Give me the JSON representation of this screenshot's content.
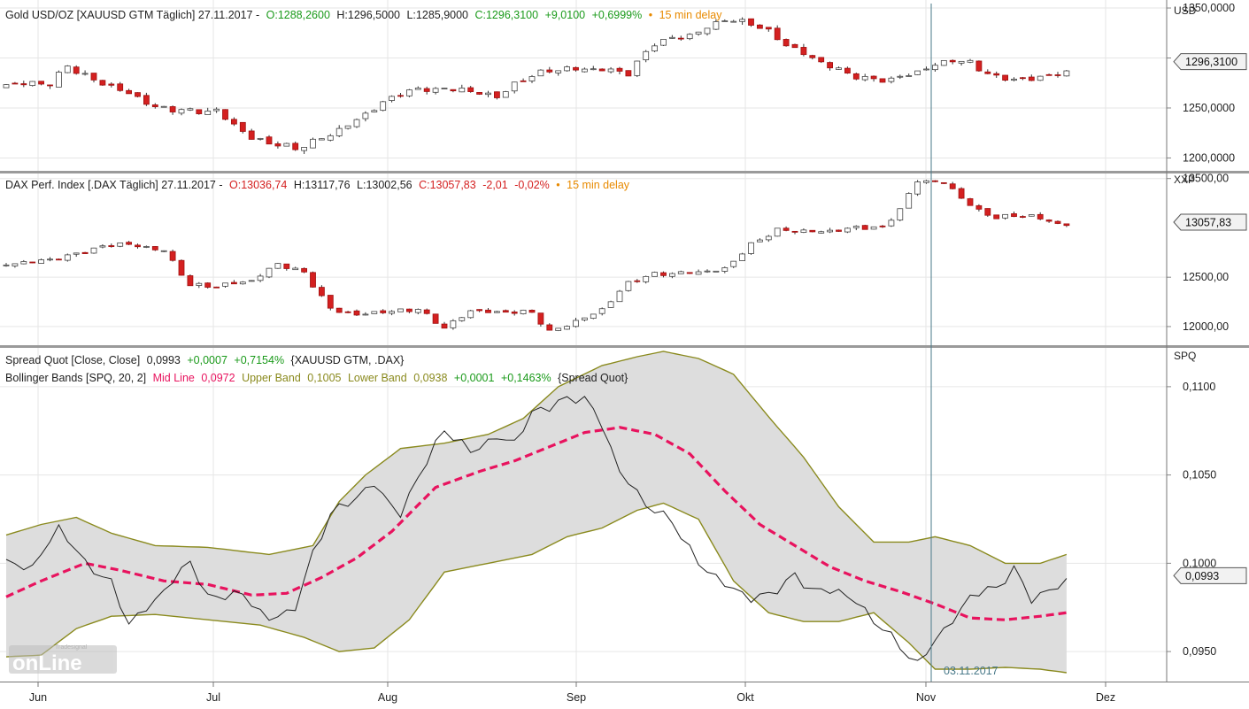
{
  "colors": {
    "up_candle": "#ffffff",
    "down_candle": "#d42020",
    "wick": "#333333",
    "price_line": "#222222",
    "mid_line": "#e8135e",
    "band_line": "#8a8a1e",
    "band_fill": "#dddddd",
    "grid": "#e6e6e6",
    "separator": "#9a9a9a",
    "cursor": "#4a7a8a",
    "positive": "#1a9a1a",
    "negative": "#d42020",
    "delay": "#e88a00"
  },
  "x_axis": {
    "labels": [
      "Jun",
      "Jul",
      "Aug",
      "Sep",
      "Okt",
      "Nov",
      "Dez"
    ],
    "cursor_date": "03.11.2017"
  },
  "logo": {
    "brand": "Tradesignal",
    "text": "onLine"
  },
  "chart_data": [
    {
      "type": "candlestick",
      "id": "gold",
      "header": {
        "name": "Gold USD/OZ [XAUUSD GTM Täglich] 27.11.2017 -",
        "open": "O:1288,2600",
        "high": "H:1296,5000",
        "low": "L:1285,9000",
        "close": "C:1296,3100",
        "change": "+9,0100",
        "change_pct": "+0,6999%",
        "delay": "15 min delay"
      },
      "unit": "USD",
      "ylim": [
        1188,
        1358
      ],
      "yticks": [
        "1350,0000",
        "1300,0000",
        "1250,0000",
        "1200,0000"
      ],
      "ytick_values": [
        1350,
        1300,
        1250,
        1200
      ],
      "last_value": "1296,3100",
      "last_value_num": 1296.31,
      "candles": []
    },
    {
      "type": "candlestick",
      "id": "dax",
      "header": {
        "name": "DAX Perf. Index [.DAX Täglich] 27.11.2017 -",
        "open": "O:13036,74",
        "high": "H:13117,76",
        "low": "L:13002,56",
        "close": "C:13057,83",
        "change": "-2,01",
        "change_pct": "-0,02%",
        "delay": "15 min delay"
      },
      "unit": "XXP",
      "ylim": [
        11820,
        13560
      ],
      "yticks": [
        "13500,00",
        "12500,00",
        "12000,00"
      ],
      "ytick_values": [
        13500,
        12500,
        12000
      ],
      "last_value": "13057,83",
      "last_value_num": 13057.83,
      "candles": []
    },
    {
      "type": "line",
      "id": "spread",
      "header1": {
        "name": "Spread Quot [Close, Close]",
        "value": "0,0993",
        "change": "+0,0007",
        "change_pct": "+0,7154%",
        "source": "{XAUUSD GTM, .DAX}"
      },
      "header2": {
        "name": "Bollinger Bands [SPQ, 20, 2]",
        "mid_label": "Mid Line",
        "mid_value": "0,0972",
        "upper_label": "Upper Band",
        "upper_value": "0,1005",
        "lower_label": "Lower Band",
        "lower_value": "0,0938",
        "change": "+0,0001",
        "change_pct": "+0,1463%",
        "source": "{Spread Quot}"
      },
      "unit": "SPQ",
      "ylim": [
        0.0933,
        0.1122
      ],
      "yticks": [
        "0,1100",
        "0,1050",
        "0,1000",
        "0,0950"
      ],
      "ytick_values": [
        0.11,
        0.105,
        0.1,
        0.095
      ],
      "last_value": "0,0993",
      "last_value_num": 0.0993,
      "spread": [],
      "mid": [],
      "upper": [],
      "lower": []
    }
  ]
}
